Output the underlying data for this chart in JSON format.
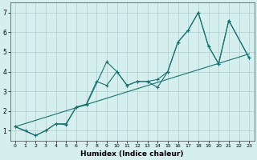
{
  "line1_x": [
    0,
    1,
    2,
    3,
    4,
    5,
    6,
    7,
    9,
    10,
    11,
    12,
    13,
    14,
    15,
    16,
    17,
    18,
    19,
    20,
    21,
    23
  ],
  "line1_y": [
    1.2,
    1.0,
    0.75,
    1.0,
    1.35,
    1.3,
    2.2,
    2.3,
    4.5,
    4.0,
    3.3,
    3.5,
    3.5,
    3.2,
    4.0,
    5.5,
    6.1,
    7.0,
    5.3,
    4.4,
    6.6,
    4.7
  ],
  "line2_x": [
    0,
    2,
    3,
    4,
    5,
    6,
    7,
    8,
    9,
    10,
    11,
    12,
    13,
    14,
    15,
    16,
    17,
    18,
    19,
    20,
    21,
    23
  ],
  "line2_y": [
    1.2,
    0.75,
    1.0,
    1.35,
    1.35,
    2.2,
    2.35,
    3.5,
    3.3,
    4.0,
    3.3,
    3.5,
    3.5,
    3.6,
    4.0,
    5.5,
    6.1,
    7.0,
    5.3,
    4.4,
    6.6,
    4.7
  ],
  "line3_x": [
    0,
    23
  ],
  "line3_y": [
    1.2,
    4.9
  ],
  "color": "#1a7070",
  "bg_color": "#d5efef",
  "grid_color": "#b0cccc",
  "xlabel": "Humidex (Indice chaleur)",
  "ylim": [
    0.5,
    7.5
  ],
  "xlim": [
    -0.5,
    23.5
  ],
  "yticks": [
    1,
    2,
    3,
    4,
    5,
    6,
    7
  ],
  "xticks": [
    0,
    1,
    2,
    3,
    4,
    5,
    6,
    7,
    8,
    9,
    10,
    11,
    12,
    13,
    14,
    15,
    16,
    17,
    18,
    19,
    20,
    21,
    22,
    23
  ]
}
